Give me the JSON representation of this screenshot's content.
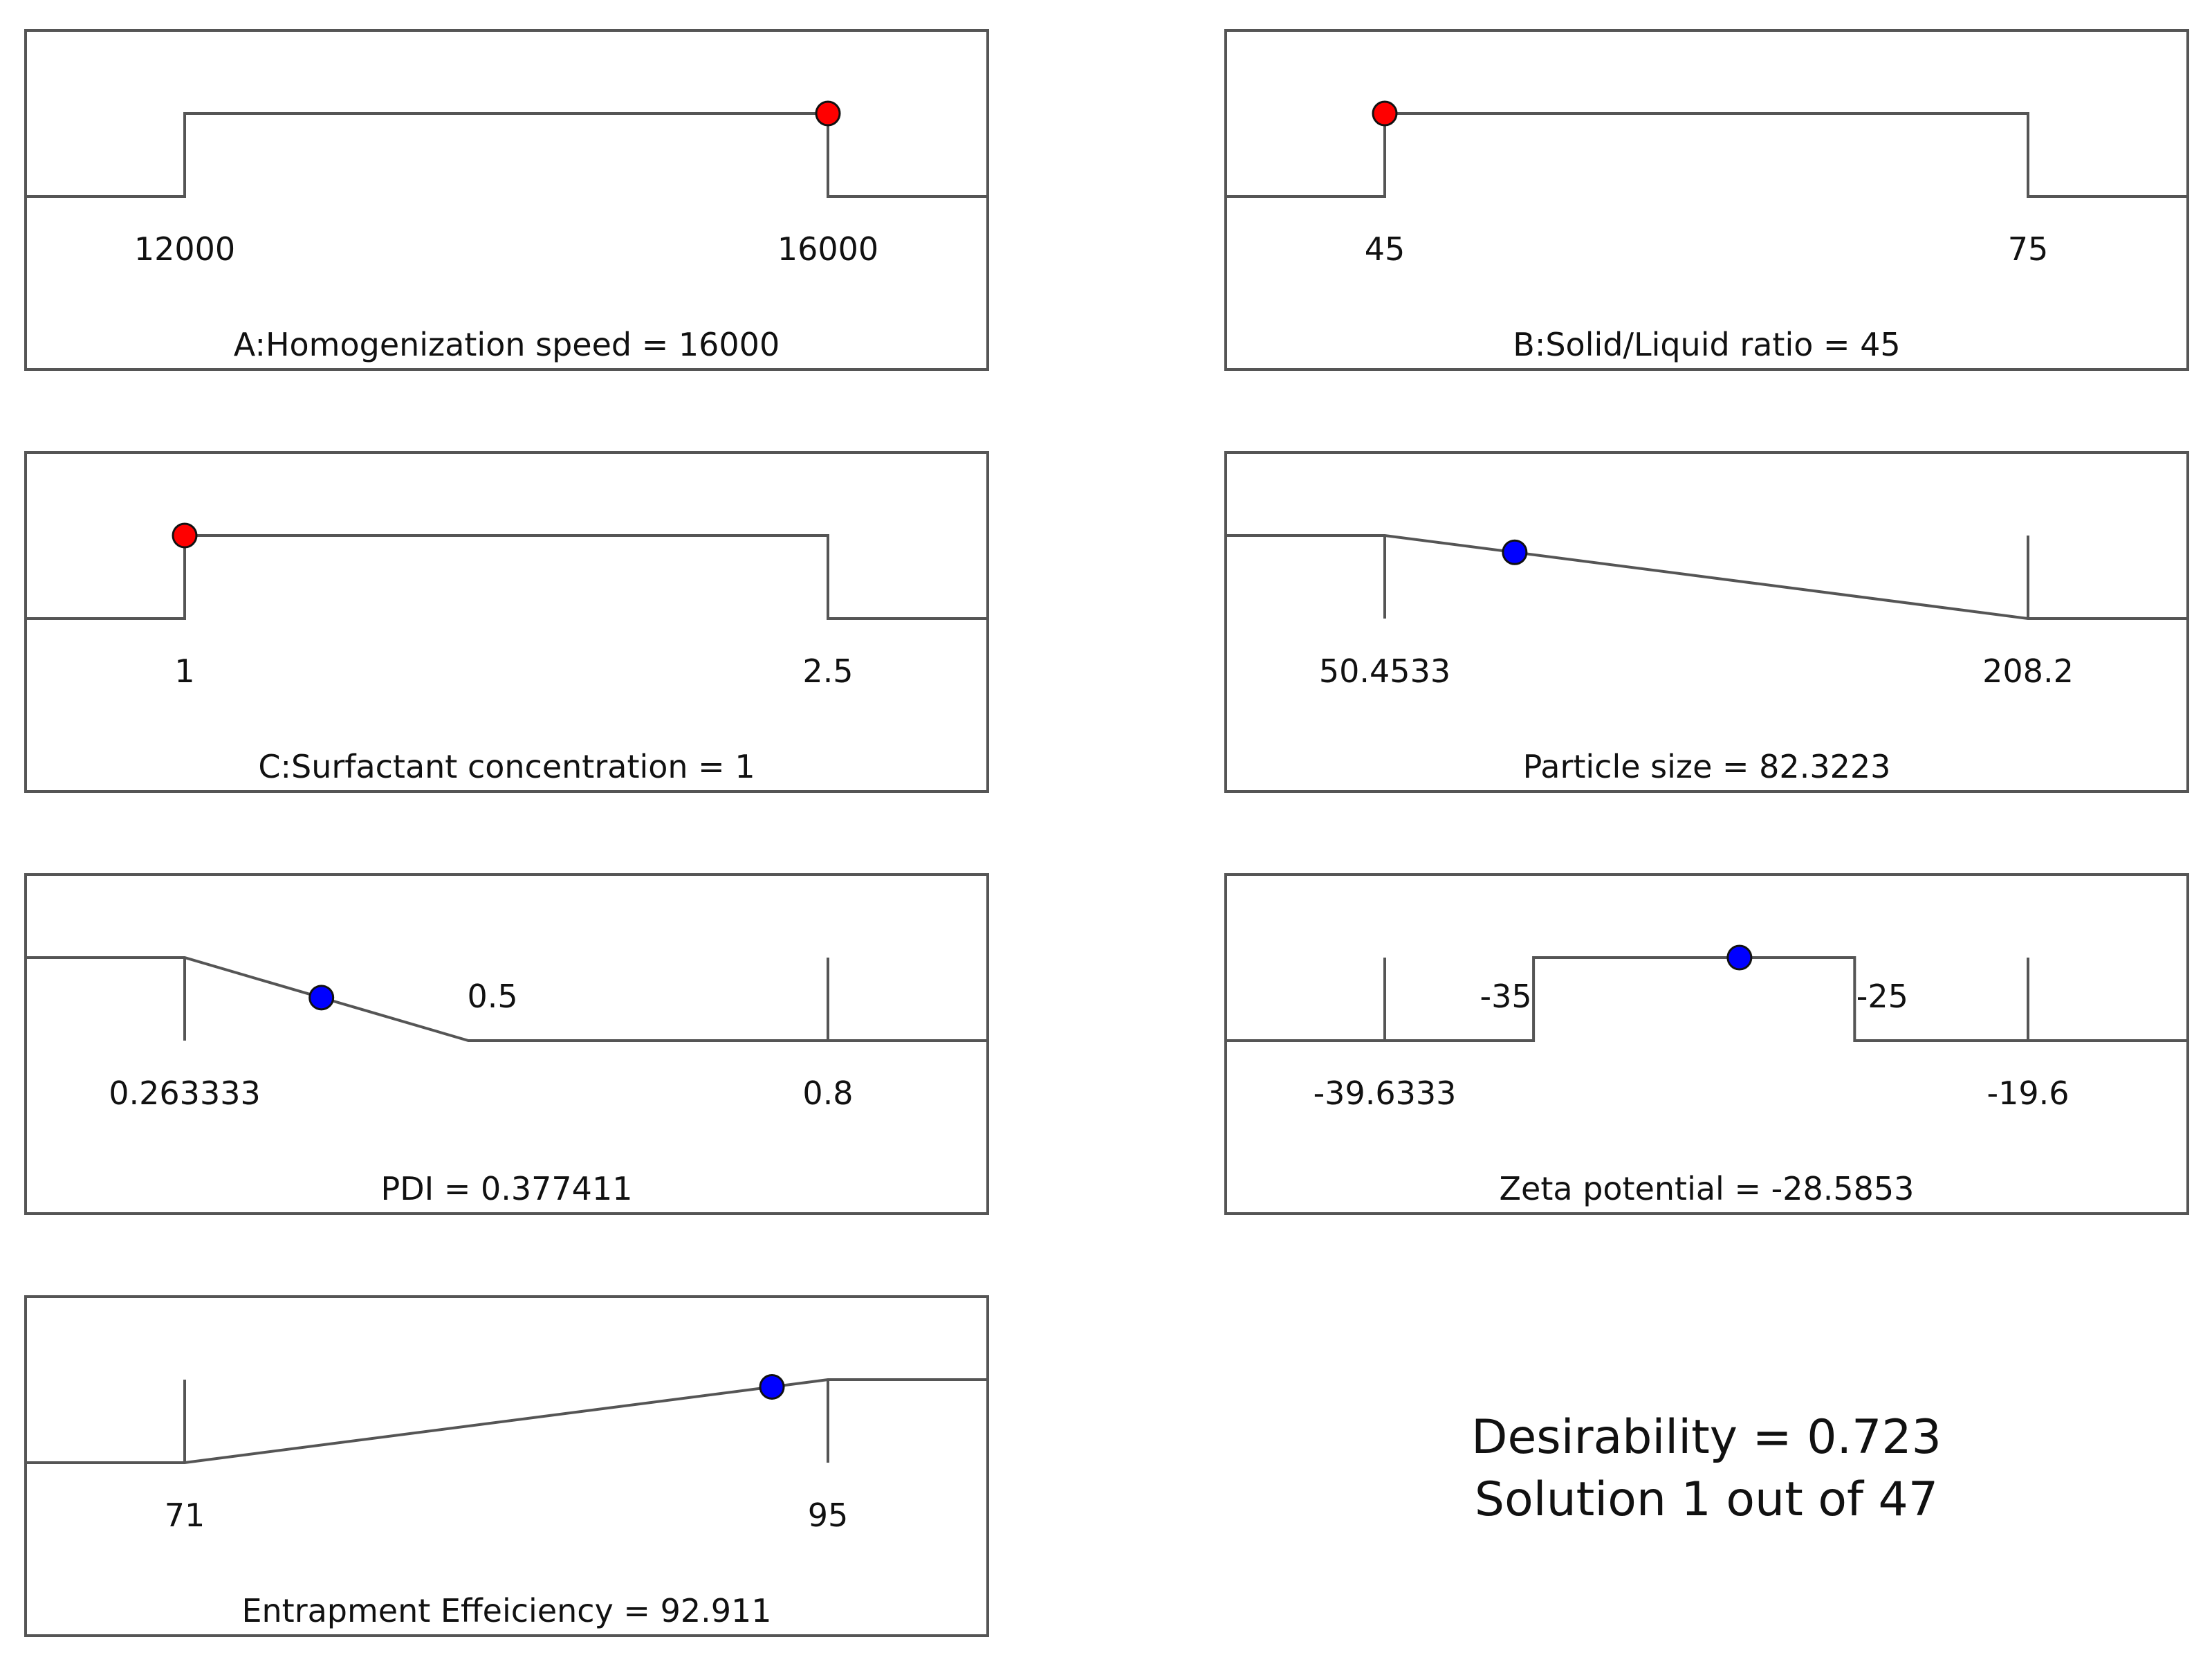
{
  "colors": {
    "factor_point": "#ff0000",
    "response_point": "#0000ff",
    "line": "#555555"
  },
  "chart_data": [
    {
      "type": "line",
      "id": "A",
      "title": "A:Homogenization speed = 16000",
      "kind": "factor",
      "ticks": [
        "12000",
        "16000"
      ],
      "value": 16000,
      "curve": {
        "x": [
          12000,
          12000,
          16000,
          16000
        ],
        "y": [
          0,
          1,
          1,
          0
        ]
      }
    },
    {
      "type": "line",
      "id": "B",
      "title": "B:Solid/Liquid ratio = 45",
      "kind": "factor",
      "ticks": [
        "45",
        "75"
      ],
      "value": 45,
      "curve": {
        "x": [
          45,
          45,
          75,
          75
        ],
        "y": [
          0,
          1,
          1,
          0
        ]
      }
    },
    {
      "type": "line",
      "id": "C",
      "title": "C:Surfactant concentration = 1",
      "kind": "factor",
      "ticks": [
        "1",
        "2.5"
      ],
      "value": 1,
      "curve": {
        "x": [
          1,
          1,
          2.5,
          2.5
        ],
        "y": [
          0,
          1,
          1,
          0
        ]
      }
    },
    {
      "type": "line",
      "id": "PS",
      "title": "Particle size = 82.3223",
      "kind": "response",
      "ticks": [
        "50.4533",
        "208.2"
      ],
      "value": 82.3223,
      "curve": {
        "x": [
          50.4533,
          208.2
        ],
        "y": [
          1,
          0
        ]
      }
    },
    {
      "type": "line",
      "id": "PDI",
      "title": "PDI = 0.377411",
      "kind": "response",
      "ticks": [
        "0.263333",
        "0.8"
      ],
      "upper_ticks": [
        "0.5"
      ],
      "value": 0.377411,
      "curve": {
        "x": [
          0.263333,
          0.5
        ],
        "y": [
          1,
          0
        ]
      }
    },
    {
      "type": "line",
      "id": "ZP",
      "title": "Zeta potential = -28.5853",
      "kind": "response",
      "ticks": [
        "-39.6333",
        "-19.6"
      ],
      "upper_ticks": [
        "-35",
        "-25"
      ],
      "value": -28.5853,
      "curve": {
        "x": [
          -35,
          -35,
          -25,
          -25
        ],
        "y": [
          0,
          1,
          1,
          0
        ]
      }
    },
    {
      "type": "line",
      "id": "EE",
      "title": "Entrapment Effeiciency = 92.911",
      "kind": "response",
      "ticks": [
        "71",
        "95"
      ],
      "value": 92.911,
      "curve": {
        "x": [
          71,
          95
        ],
        "y": [
          0,
          1
        ]
      }
    }
  ],
  "summary": {
    "desirability": "Desirability = 0.723",
    "solution": "Solution 1 out of 47"
  }
}
